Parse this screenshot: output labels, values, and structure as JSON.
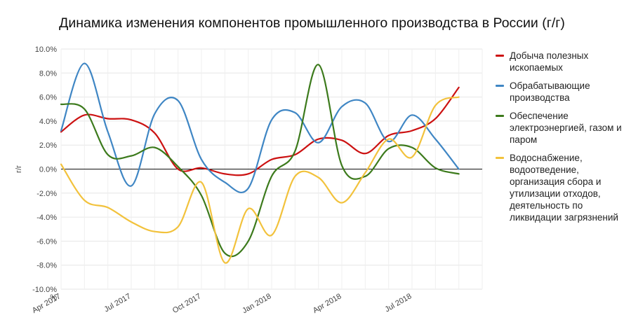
{
  "chart_data": {
    "type": "line",
    "title": "Динамика изменения компонентов промышленного производства в России (г/г)",
    "ylabel": "г/г",
    "xlabel": "",
    "ylim": [
      -10,
      10
    ],
    "yticks": [
      10,
      8,
      6,
      4,
      2,
      0,
      -2,
      -4,
      -6,
      -8,
      -10
    ],
    "ytick_labels": [
      "10.0%",
      "8.0%",
      "6.0%",
      "4.0%",
      "2.0%",
      "0.0%",
      "-2.0%",
      "-4.0%",
      "-6.0%",
      "-8.0%",
      "-10.0%"
    ],
    "ytick_unit": "%",
    "x": [
      "2017-04",
      "2017-05",
      "2017-06",
      "2017-07",
      "2017-08",
      "2017-09",
      "2017-10",
      "2017-11",
      "2017-12",
      "2018-01",
      "2018-02",
      "2018-03",
      "2018-04",
      "2018-05",
      "2018-06",
      "2018-07",
      "2018-08",
      "2018-09",
      "2018-10"
    ],
    "xticks": [
      {
        "x": "2017-04",
        "label": "Apr 2017"
      },
      {
        "x": "2017-07",
        "label": "Jul 2017"
      },
      {
        "x": "2017-10",
        "label": "Oct 2017"
      },
      {
        "x": "2018-01",
        "label": "Jan 2018"
      },
      {
        "x": "2018-04",
        "label": "Apr 2018"
      },
      {
        "x": "2018-07",
        "label": "Jul 2018"
      }
    ],
    "grid": true,
    "legend_position": "right",
    "series": [
      {
        "name": "Добыча полезных ископаемых",
        "color": "#cc1111",
        "values": [
          3.1,
          4.5,
          4.2,
          4.1,
          3.0,
          0.0,
          0.1,
          -0.4,
          -0.4,
          0.8,
          1.2,
          2.5,
          2.4,
          1.3,
          2.8,
          3.2,
          4.2,
          6.8,
          null
        ]
      },
      {
        "name": "Обрабатывающие производства",
        "color": "#3f86c4",
        "values": [
          3.2,
          8.8,
          3.1,
          -1.4,
          4.6,
          5.7,
          0.8,
          -1.1,
          -1.6,
          4.1,
          4.7,
          2.2,
          5.2,
          5.5,
          2.3,
          4.5,
          2.5,
          0.0,
          null
        ]
      },
      {
        "name": "Обеспечение электроэнергией, газом и паром",
        "color": "#3c7a1c",
        "values": [
          5.4,
          5.0,
          1.2,
          1.1,
          1.8,
          0.2,
          -2.2,
          -7.0,
          -6.0,
          -0.6,
          1.5,
          8.7,
          0.3,
          -0.6,
          1.7,
          1.8,
          0.1,
          -0.4,
          null
        ]
      },
      {
        "name": "Водоснабжение, водоотведение, организация сбора и утилизации отходов, деятельность по ликвидации загрязнений",
        "color": "#f2c23c",
        "values": [
          0.4,
          -2.6,
          -3.2,
          -4.4,
          -5.2,
          -4.8,
          -1.1,
          -7.8,
          -3.3,
          -5.5,
          -0.6,
          -0.7,
          -2.8,
          -0.3,
          2.5,
          1.0,
          5.3,
          6.0,
          null
        ]
      }
    ]
  }
}
